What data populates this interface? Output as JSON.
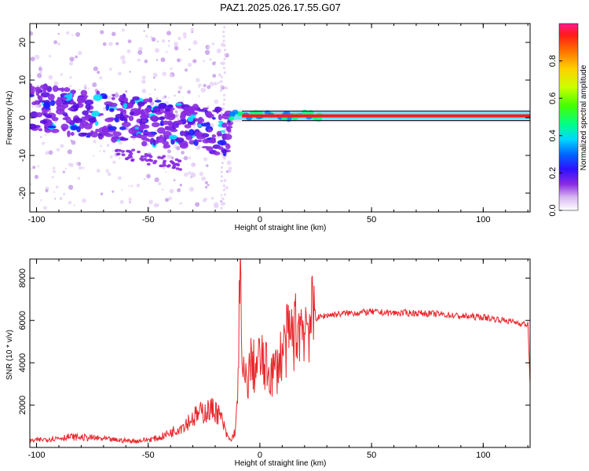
{
  "title": "PAZ1.2025.026.17.55.G07",
  "colors": {
    "snr_line": "#e8282c",
    "axis": "#000000",
    "colormap": [
      "#ffffff",
      "#e6d2f6",
      "#c39ae8",
      "#8a2be2",
      "#5a10e0",
      "#1a1aff",
      "#0080ff",
      "#00e0ff",
      "#00ff80",
      "#40ff00",
      "#c0ff00",
      "#ffe000",
      "#ff8000",
      "#ff1a1a",
      "#ff1a80"
    ]
  },
  "chart_data": [
    {
      "type": "heatmap",
      "title": "",
      "xlabel": "Height of straight line (km)",
      "ylabel": "Frequency (Hz)",
      "xlim": [
        -103,
        121
      ],
      "ylim": [
        -25,
        25
      ],
      "x_ticks": [
        "-100",
        "-50",
        "0",
        "50",
        "100"
      ],
      "y_ticks": [
        "20",
        "10",
        "0",
        "-10",
        "-20"
      ],
      "colorbar": {
        "label": "Normalized spectral amplitude",
        "range": [
          0,
          1
        ],
        "ticks": [
          "0.0",
          "0.2",
          "0.4",
          "0.6",
          "0.8"
        ]
      },
      "features": {
        "noisy_region_x": [
          -103,
          -13
        ],
        "noisy_center_freq_start": 3,
        "noisy_center_freq_end": -4,
        "stable_line_x": [
          -13,
          121
        ],
        "stable_line_freq": 0.5
      }
    },
    {
      "type": "line",
      "title": "",
      "xlabel": "Height of straight line (km)",
      "ylabel": "SNR (10 * v/v)",
      "xlim": [
        -103,
        121
      ],
      "ylim": [
        0,
        8900
      ],
      "x_ticks": [
        "-100",
        "-50",
        "0",
        "50",
        "100"
      ],
      "y_ticks": [
        "2000",
        "4000",
        "6000",
        "8000"
      ],
      "series": [
        {
          "x": [
            -103,
            -95,
            -85,
            -75,
            -65,
            -55,
            -45,
            -40,
            -35,
            -30,
            -25,
            -20,
            -17,
            -15,
            -13,
            -11,
            -10,
            -9,
            -8,
            -6,
            -4,
            -2,
            0,
            2,
            4,
            6,
            8,
            10,
            12,
            15,
            18,
            22,
            25,
            30,
            40,
            50,
            60,
            70,
            80,
            90,
            100,
            110,
            115,
            120,
            121
          ],
          "y": [
            300,
            400,
            500,
            450,
            350,
            300,
            450,
            700,
            1000,
            1400,
            1700,
            1800,
            1300,
            600,
            300,
            800,
            2000,
            8900,
            3500,
            3000,
            4000,
            3700,
            4200,
            3800,
            3600,
            3500,
            3900,
            4500,
            5000,
            5400,
            5800,
            6000,
            6100,
            6250,
            6350,
            6400,
            6350,
            6350,
            6300,
            6200,
            6150,
            6000,
            5900,
            5800,
            3000
          ]
        }
      ]
    }
  ]
}
